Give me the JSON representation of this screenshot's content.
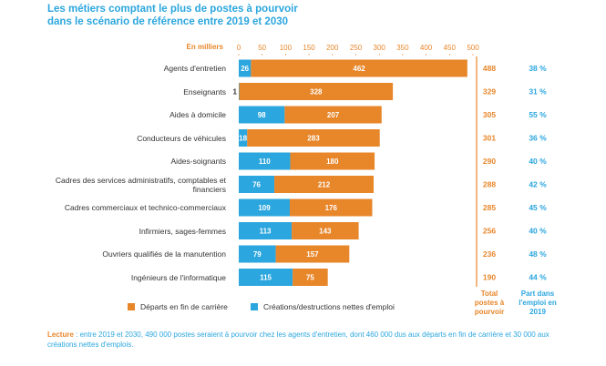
{
  "chart_data": {
    "type": "stacked-bar-horizontal",
    "title": [
      "Les métiers comptant le plus de postes à pourvoir",
      "dans le scénario de référence entre 2019 et 2030"
    ],
    "axis_label": "En milliers",
    "categories": [
      "Agents d'entretien",
      "Enseignants",
      "Aides à domicile",
      "Conducteurs de véhicules",
      "Aides-soignants",
      "Cadres des services administratifs, comptables et financiers",
      "Cadres commerciaux et technico-commerciaux",
      "Infirmiers, sages-femmes",
      "Ouvriers qualifiés de la manutention",
      "Ingénieurs de l'informatique"
    ],
    "series": [
      {
        "name": "Créations/destructions nettes d'emploi",
        "color": "#2ba6de",
        "values": [
          26,
          1,
          98,
          18,
          110,
          76,
          109,
          113,
          79,
          115
        ]
      },
      {
        "name": "Départs en fin de carrière",
        "color": "#e8862a",
        "values": [
          462,
          328,
          207,
          283,
          180,
          212,
          176,
          143,
          157,
          75
        ]
      }
    ],
    "totals": {
      "name": "Total postes à pourvoir",
      "color": "#e8862a",
      "values": [
        488,
        329,
        305,
        301,
        290,
        288,
        285,
        256,
        236,
        190
      ]
    },
    "shares": {
      "name": "Part dans l'emploi en 2019",
      "color": "#2ba6de",
      "values": [
        38,
        31,
        55,
        36,
        40,
        42,
        45,
        40,
        48,
        44
      ],
      "value_labels": [
        "38 %",
        "31 %",
        "55 %",
        "36 %",
        "40 %",
        "42 %",
        "45 %",
        "40 %",
        "48 %",
        "44 %"
      ]
    },
    "xlim": [
      0,
      500
    ],
    "xticks": [
      0,
      50,
      100,
      150,
      200,
      250,
      300,
      350,
      400,
      450,
      500
    ],
    "note_label": "Lecture",
    "note": " : entre 2019 et 2030, 490 000 postes seraient à pourvoir chez les agents d'entretien, dont 460 000 dus aux départs en fin de carrière et 30 000 aux créations nettes d'emplois."
  }
}
